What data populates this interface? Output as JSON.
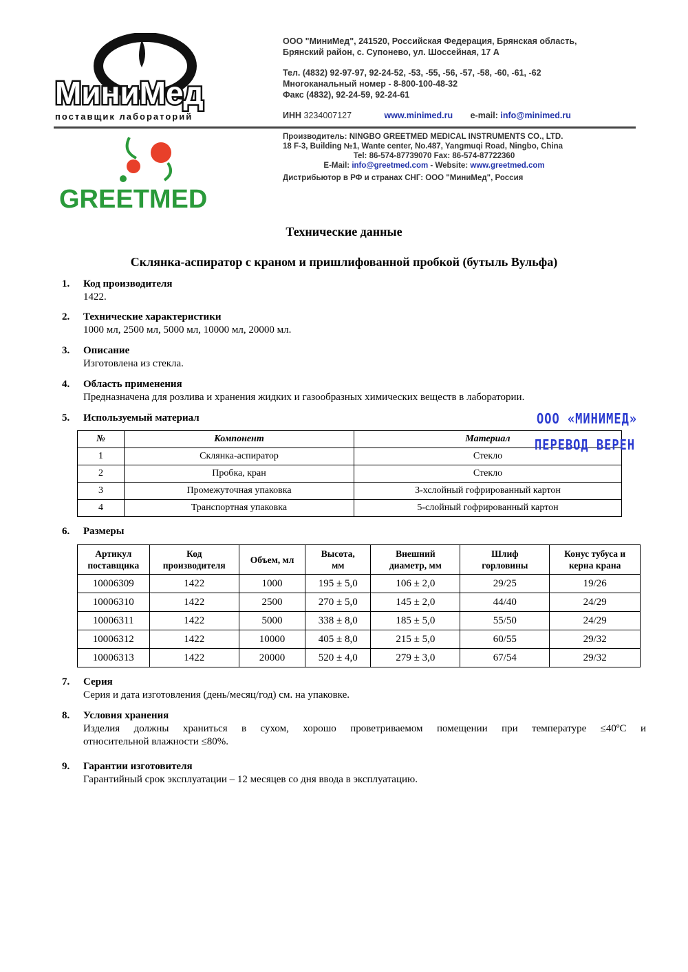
{
  "header": {
    "minimed_logo_text": "МиниМед",
    "minimed_tagline": "поставщик лабораторий",
    "address_lines": [
      "ООО \"МиниМед\", 241520, Российская Федерация, Брянская область,",
      "Брянский район,  с. Супонево, ул. Шоссейная, 17 А"
    ],
    "phone_lines": [
      "Тел. (4832) 92-97-97, 92-24-52, -53, -55, -56, -57, -58, -60, -61, -62",
      "Многоканальный номер - 8-800-100-48-32",
      "Факс (4832), 92-24-59, 92-24-61"
    ],
    "inn_label": "ИНН",
    "inn": "3234007127",
    "website": "www.minimed.ru",
    "email_label": "e-mail:",
    "email": "info@minimed.ru",
    "greetmed_logo_text": "GREETMED",
    "manufacturer_lines": [
      "Производитель: NINGBO GREETMED MEDICAL INSTRUMENTS CO., LTD.",
      "18 F-3, Building №1, Wante center, No.487, Yangmuqi Road, Ningbo, China",
      "Tel: 86-574-87739070     Fax: 86-574-87722360"
    ],
    "mf_email_label": "E-Mail:",
    "mf_email": "info@greetmed.com",
    "mf_website_label": "- Website:",
    "mf_website": "www.greetmed.com",
    "distributor": "Дистрибьютор в РФ и странах СНГ: ООО \"МиниМед\", Россия"
  },
  "doc_title": "Технические данные",
  "product_title": "Склянка-аспиратор с краном и пришлифованной пробкой (бутыль Вульфа)",
  "sections": [
    {
      "num": "1.",
      "head": "Код производителя",
      "body": "1422."
    },
    {
      "num": "2.",
      "head": "Технические характеристики",
      "body": "1000 мл, 2500 мл, 5000 мл, 10000 мл, 20000 мл."
    },
    {
      "num": "3.",
      "head": "Описание",
      "body": "Изготовлена из стекла."
    },
    {
      "num": "4.",
      "head": "Область применения",
      "body": "Предназначена для розлива и хранения жидких и газообразных химических веществ в лаборатории."
    },
    {
      "num": "5.",
      "head": "Используемый материал"
    },
    {
      "num": "6.",
      "head": "Размеры"
    },
    {
      "num": "7.",
      "head": "Серия",
      "body": "Серия и дата изготовления (день/месяц/год) см. на упаковке."
    },
    {
      "num": "8.",
      "head": "Условия хранения",
      "body": "Изделия должны храниться в сухом, хорошо проветриваемом помещении при температуре ≤40ºC и",
      "body2": "относительной влажности ≤80%."
    },
    {
      "num": "9.",
      "head": "Гарантии изготовителя",
      "body": "Гарантийный срок эксплуатации – 12 месяцев со дня ввода в эксплуатацию."
    }
  ],
  "materials_table": {
    "headers": [
      "№",
      "Компонент",
      "Материал"
    ],
    "rows": [
      [
        "1",
        "Склянка-аспиратор",
        "Стекло"
      ],
      [
        "2",
        "Пробка, кран",
        "Стекло"
      ],
      [
        "3",
        "Промежуточная упаковка",
        "3-хслойный гофрированный картон"
      ],
      [
        "4",
        "Транспортная упаковка",
        "5-слойный гофрированный картон"
      ]
    ]
  },
  "dimensions_table": {
    "headers": [
      [
        "Артикул",
        "поставщика"
      ],
      [
        "Код",
        "производителя"
      ],
      [
        "Объем, мл",
        ""
      ],
      [
        "Высота,",
        "мм"
      ],
      [
        "Внешний",
        "диаметр, мм"
      ],
      [
        "Шлиф",
        "горловины"
      ],
      [
        "Конус тубуса и",
        "керна крана"
      ]
    ],
    "rows": [
      [
        "10006309",
        "1422",
        "1000",
        "195 ± 5,0",
        "106 ± 2,0",
        "29/25",
        "19/26"
      ],
      [
        "10006310",
        "1422",
        "2500",
        "270 ± 5,0",
        "145 ± 2,0",
        "44/40",
        "24/29"
      ],
      [
        "10006311",
        "1422",
        "5000",
        "338 ± 8,0",
        "185 ± 5,0",
        "55/50",
        "24/29"
      ],
      [
        "10006312",
        "1422",
        "10000",
        "405 ± 8,0",
        "215 ± 5,0",
        "60/55",
        "29/32"
      ],
      [
        "10006313",
        "1422",
        "20000",
        "520 ± 4,0",
        "279 ± 3,0",
        "67/54",
        "29/32"
      ]
    ]
  },
  "stamp": {
    "line1": "ООО «МИНИМЕД»",
    "line2": "ПЕРЕВОД  ВЕРЕН",
    "color": "#2a3ad0"
  }
}
